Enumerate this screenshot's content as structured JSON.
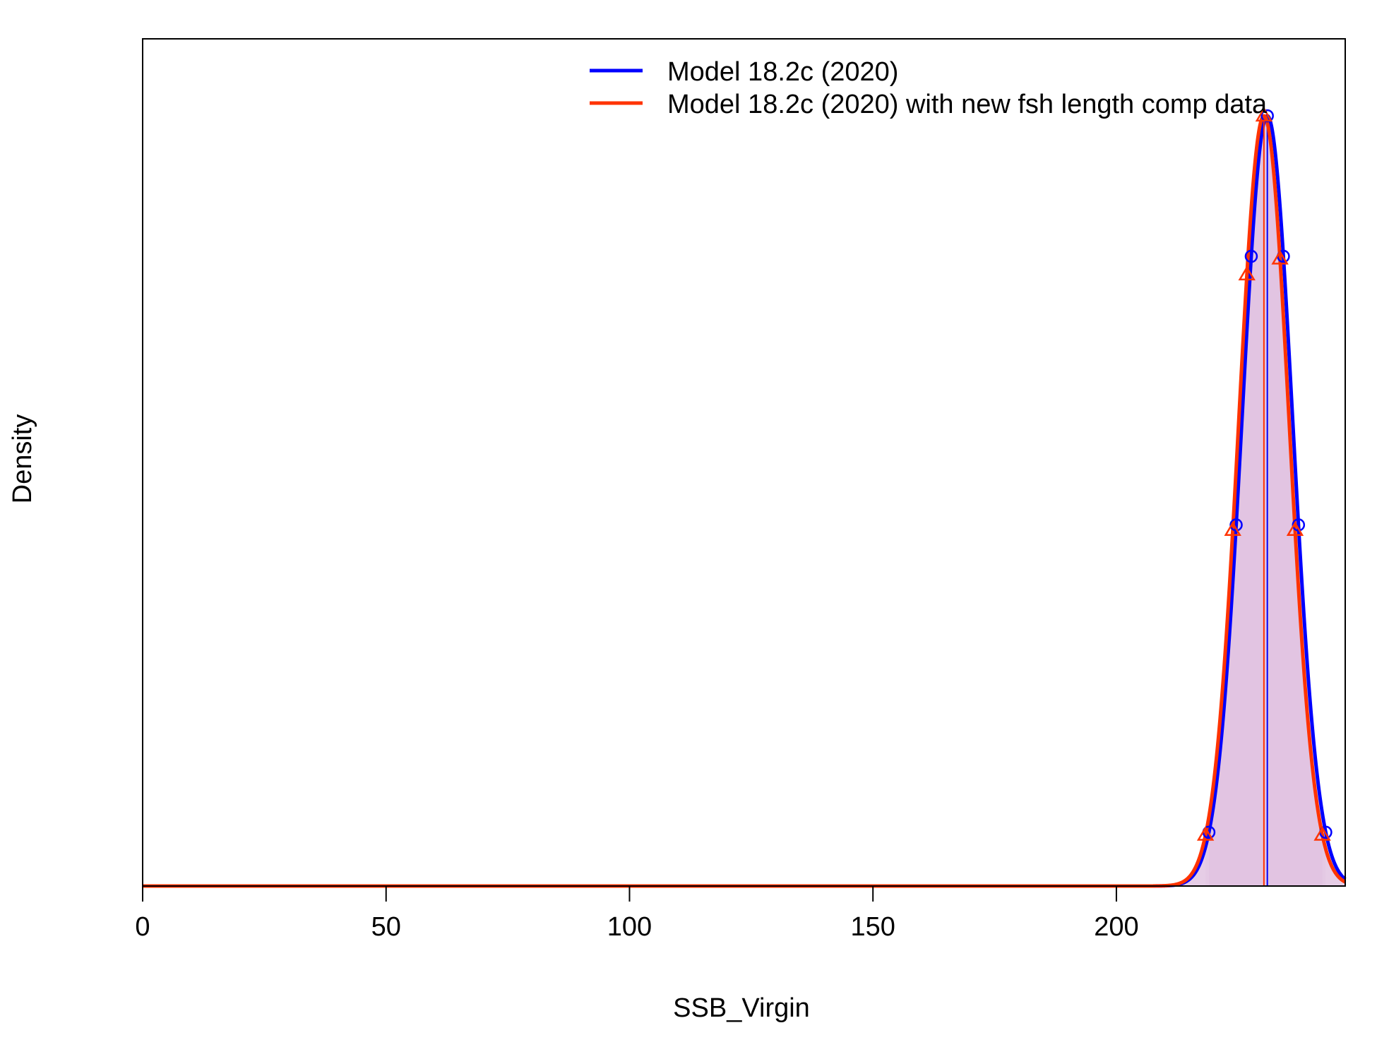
{
  "chart_data": {
    "type": "line",
    "title": "",
    "xlabel": "SSB_Virgin",
    "ylabel": "Density",
    "xlim": [
      0,
      247
    ],
    "ylim": [
      0,
      1.1
    ],
    "x_ticks": [
      0,
      50,
      100,
      150,
      200
    ],
    "x_tick_labels": [
      "0",
      "50",
      "100",
      "150",
      "200"
    ],
    "y_ticks_shown": false,
    "grid": false,
    "legend_position": "top-right",
    "series": [
      {
        "name": "Model 18.2c (2020)",
        "color": "#0000FF",
        "marker": "circle",
        "distribution": "normal",
        "mean": 231.0,
        "sd": 5.2,
        "ci_low": 219.0,
        "ci_high": 243.0,
        "marker_x": [
          219.0,
          224.6,
          227.7,
          231.0,
          234.3,
          237.4,
          243.0
        ]
      },
      {
        "name": "Model 18.2c (2020) with new fsh length comp data",
        "color": "#FF3300",
        "marker": "triangle",
        "distribution": "normal",
        "mean": 230.3,
        "sd": 5.15,
        "ci_low": 218.3,
        "ci_high": 242.3,
        "marker_x": [
          218.3,
          223.9,
          226.8,
          230.3,
          233.6,
          236.7,
          242.3
        ]
      }
    ],
    "shading_color": "#800080",
    "legend": [
      {
        "label": "Model 18.2c (2020)",
        "color": "#0000FF"
      },
      {
        "label": "Model 18.2c (2020) with new fsh length comp data",
        "color": "#FF3300"
      }
    ]
  }
}
